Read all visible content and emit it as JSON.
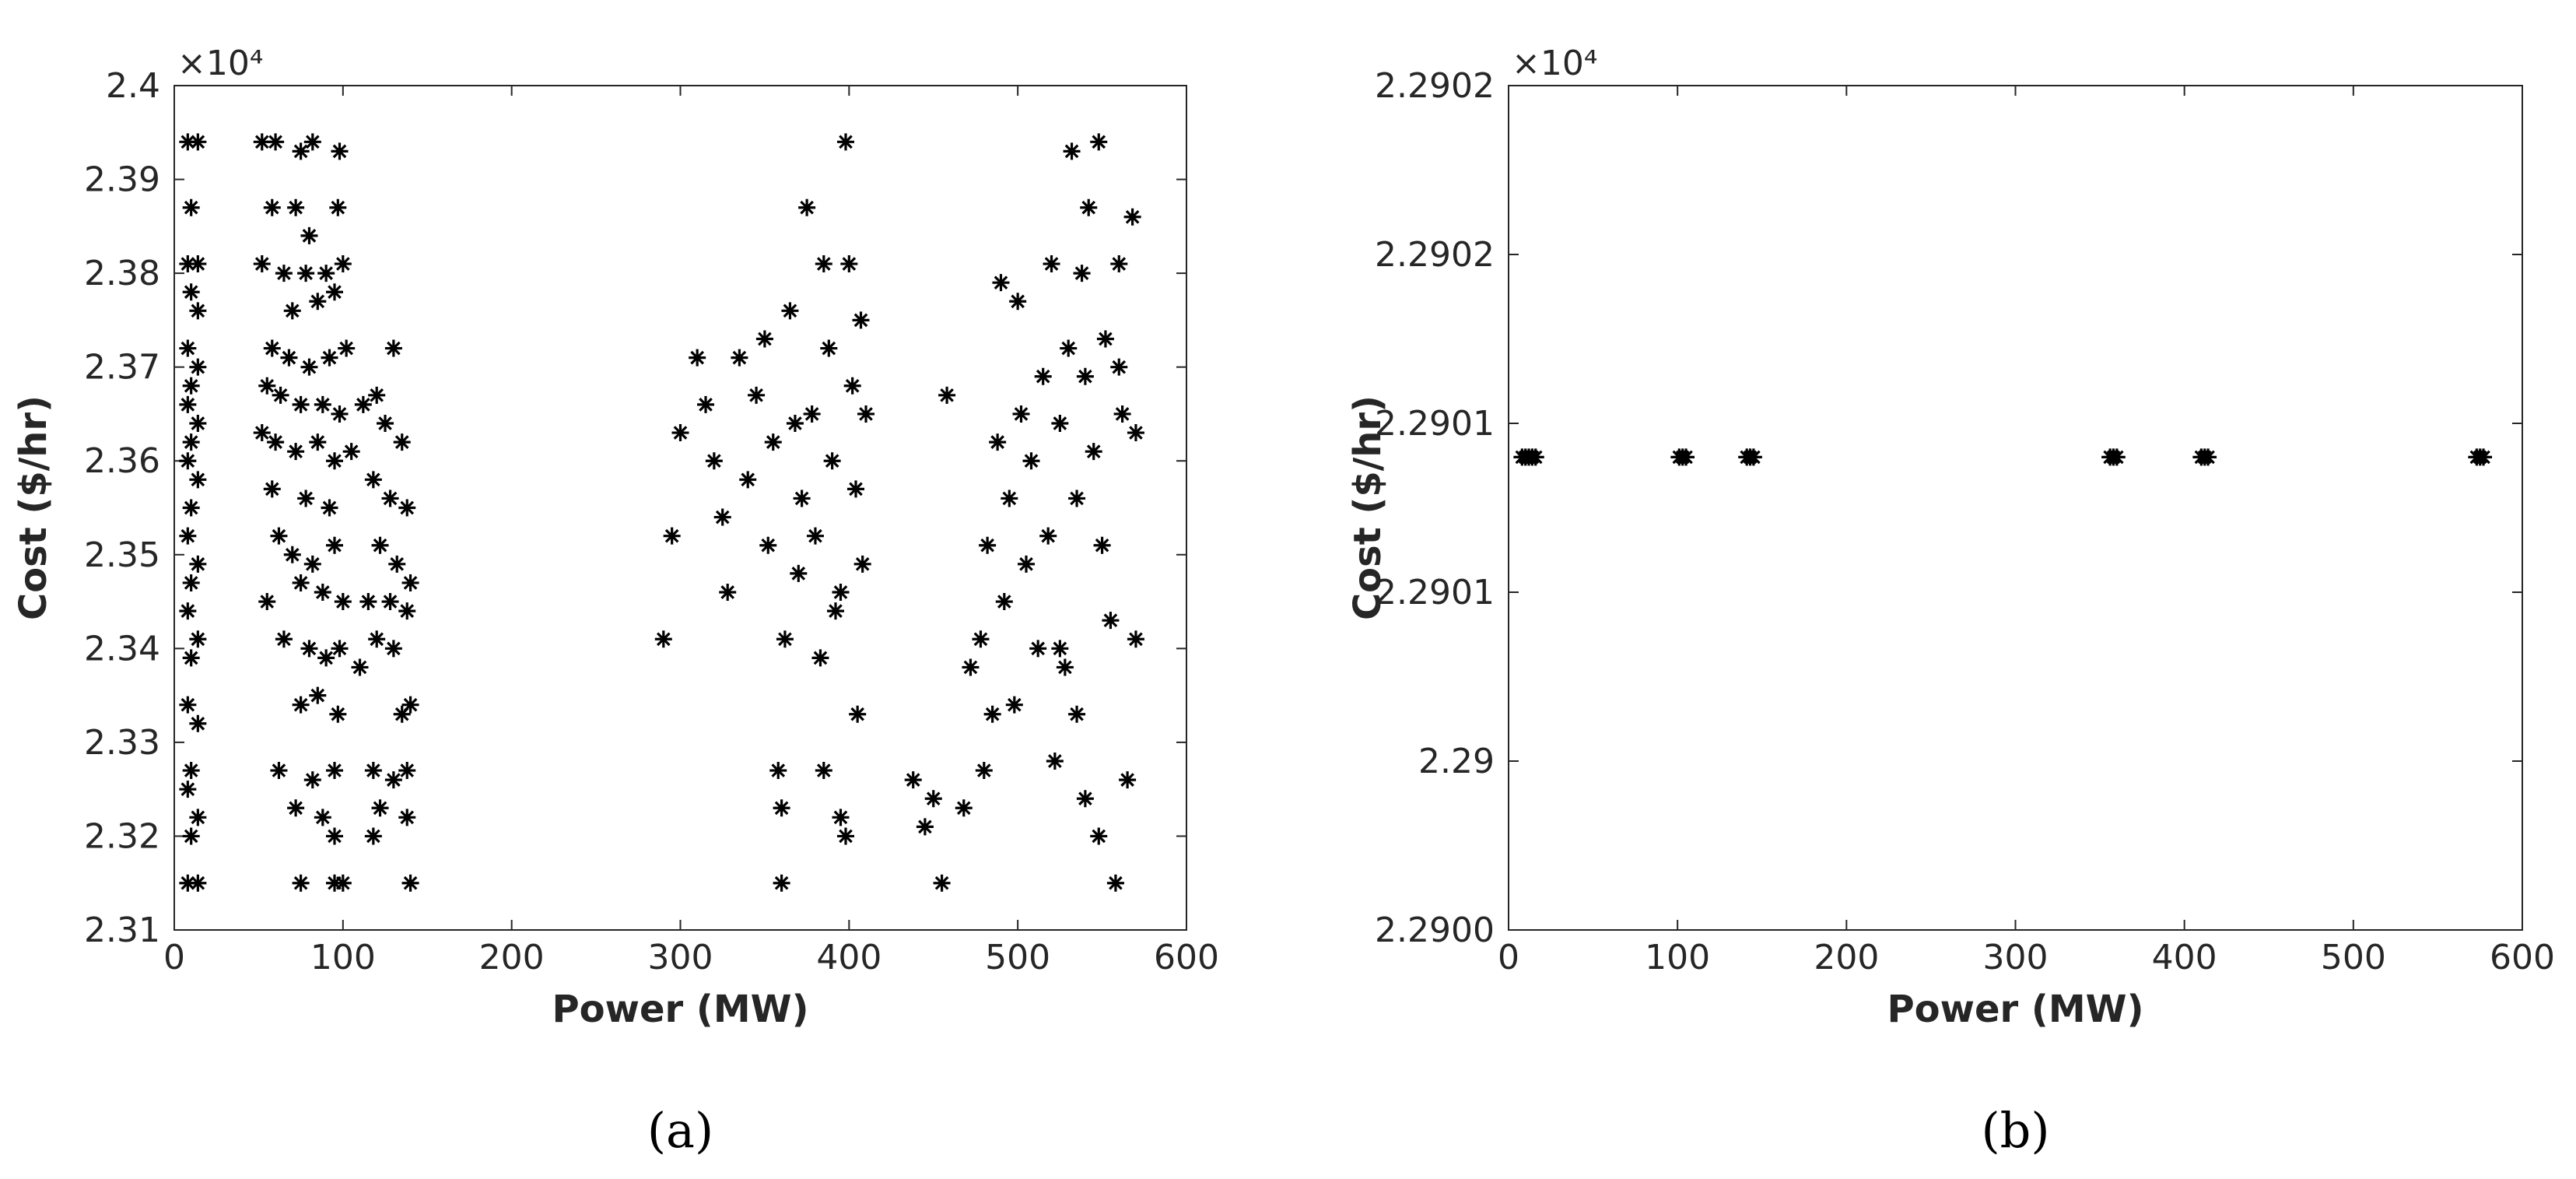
{
  "chart_data": [
    {
      "type": "scatter",
      "panel_label": "(a)",
      "xlabel": "Power (MW)",
      "ylabel": "Cost ($/hr)",
      "y_multiplier": "×10⁴",
      "marker": "asterisk",
      "color": "#000000",
      "xlim": [
        0,
        600
      ],
      "xticks": [
        0,
        100,
        200,
        300,
        400,
        500,
        600
      ],
      "ylim": [
        2.31,
        2.4
      ],
      "yticks": [
        2.31,
        2.32,
        2.33,
        2.34,
        2.35,
        2.36,
        2.37,
        2.38,
        2.39,
        2.4
      ],
      "series": [
        {
          "x": [
            8,
            14,
            10,
            8,
            14,
            10,
            14,
            8,
            14,
            10,
            8,
            14,
            10,
            8,
            14,
            10,
            8,
            14,
            10,
            8,
            14,
            10,
            8,
            14,
            10,
            8,
            14,
            10,
            8,
            14,
            52,
            60,
            75,
            82,
            98,
            58,
            72,
            97,
            80,
            52,
            65,
            78,
            90,
            100,
            70,
            85,
            95,
            58,
            68,
            80,
            92,
            102,
            55,
            63,
            75,
            88,
            98,
            52,
            60,
            72,
            85,
            95,
            105,
            58,
            78,
            92,
            62,
            70,
            82,
            95,
            55,
            75,
            88,
            100,
            65,
            80,
            90,
            98,
            75,
            85,
            97,
            62,
            82,
            95,
            72,
            88,
            95,
            75,
            95,
            100,
            112,
            120,
            130,
            125,
            135,
            118,
            128,
            138,
            122,
            132,
            140,
            115,
            128,
            138,
            120,
            130,
            110,
            135,
            140,
            118,
            130,
            138,
            122,
            138,
            118,
            140,
            290,
            295,
            300,
            310,
            315,
            320,
            325,
            328,
            335,
            340,
            345,
            350,
            352,
            355,
            358,
            360,
            362,
            365,
            368,
            370,
            372,
            375,
            378,
            380,
            383,
            385,
            388,
            390,
            392,
            395,
            398,
            400,
            402,
            404,
            405,
            407,
            408,
            410,
            360,
            398,
            385,
            395,
            438,
            445,
            450,
            455,
            458,
            468,
            472,
            478,
            480,
            482,
            485,
            488,
            490,
            492,
            495,
            498,
            500,
            502,
            505,
            508,
            512,
            515,
            518,
            520,
            522,
            525,
            528,
            530,
            532,
            535,
            538,
            540,
            542,
            545,
            548,
            550,
            552,
            555,
            558,
            560,
            562,
            565,
            568,
            570,
            570,
            548,
            540,
            525,
            560,
            535
          ],
          "y": [
            2.394,
            2.394,
            2.387,
            2.381,
            2.381,
            2.378,
            2.376,
            2.372,
            2.37,
            2.368,
            2.366,
            2.364,
            2.362,
            2.36,
            2.358,
            2.355,
            2.352,
            2.349,
            2.347,
            2.344,
            2.341,
            2.339,
            2.334,
            2.332,
            2.327,
            2.325,
            2.322,
            2.32,
            2.315,
            2.315,
            2.394,
            2.394,
            2.393,
            2.394,
            2.393,
            2.387,
            2.387,
            2.387,
            2.384,
            2.381,
            2.38,
            2.38,
            2.38,
            2.381,
            2.376,
            2.377,
            2.378,
            2.372,
            2.371,
            2.37,
            2.371,
            2.372,
            2.368,
            2.367,
            2.366,
            2.366,
            2.365,
            2.363,
            2.362,
            2.361,
            2.362,
            2.36,
            2.361,
            2.357,
            2.356,
            2.355,
            2.352,
            2.35,
            2.349,
            2.351,
            2.345,
            2.347,
            2.346,
            2.345,
            2.341,
            2.34,
            2.339,
            2.34,
            2.334,
            2.335,
            2.333,
            2.327,
            2.326,
            2.327,
            2.323,
            2.322,
            2.32,
            2.315,
            2.315,
            2.315,
            2.366,
            2.367,
            2.372,
            2.364,
            2.362,
            2.358,
            2.356,
            2.355,
            2.351,
            2.349,
            2.347,
            2.345,
            2.345,
            2.344,
            2.341,
            2.34,
            2.338,
            2.333,
            2.334,
            2.327,
            2.326,
            2.327,
            2.323,
            2.322,
            2.32,
            2.315,
            2.341,
            2.352,
            2.363,
            2.371,
            2.366,
            2.36,
            2.354,
            2.346,
            2.371,
            2.358,
            2.367,
            2.373,
            2.351,
            2.362,
            2.327,
            2.323,
            2.341,
            2.376,
            2.364,
            2.348,
            2.356,
            2.387,
            2.365,
            2.352,
            2.339,
            2.381,
            2.372,
            2.36,
            2.344,
            2.322,
            2.394,
            2.381,
            2.368,
            2.357,
            2.333,
            2.375,
            2.349,
            2.365,
            2.315,
            2.32,
            2.327,
            2.346,
            2.326,
            2.321,
            2.324,
            2.315,
            2.367,
            2.323,
            2.338,
            2.341,
            2.327,
            2.351,
            2.333,
            2.362,
            2.379,
            2.345,
            2.356,
            2.334,
            2.377,
            2.365,
            2.349,
            2.36,
            2.34,
            2.369,
            2.352,
            2.381,
            2.328,
            2.364,
            2.338,
            2.372,
            2.393,
            2.356,
            2.38,
            2.369,
            2.387,
            2.361,
            2.394,
            2.351,
            2.373,
            2.343,
            2.315,
            2.381,
            2.365,
            2.326,
            2.386,
            2.363,
            2.341,
            2.32,
            2.324,
            2.34,
            2.37,
            2.333
          ]
        }
      ]
    },
    {
      "type": "scatter",
      "panel_label": "(b)",
      "xlabel": "Power (MW)",
      "ylabel": "Cost ($/hr)",
      "y_multiplier": "×10⁴",
      "marker": "asterisk",
      "color": "#000000",
      "xlim": [
        0,
        600
      ],
      "xticks": [
        0,
        100,
        200,
        300,
        400,
        500,
        600
      ],
      "ylim": [
        2.29,
        2.2902
      ],
      "yticks": [
        {
          "value": 2.29,
          "label": "2.2900"
        },
        {
          "value": 2.29004,
          "label": "2.29"
        },
        {
          "value": 2.29008,
          "label": "2.2901"
        },
        {
          "value": 2.29012,
          "label": "2.2901"
        },
        {
          "value": 2.29016,
          "label": "2.2902"
        },
        {
          "value": 2.2902,
          "label": "2.2902"
        }
      ],
      "series": [
        {
          "x": [
            8,
            10,
            12,
            14,
            16,
            101,
            103,
            105,
            141,
            143,
            145,
            356,
            358,
            360,
            410,
            412,
            414,
            573,
            575,
            577
          ],
          "y": [
            2.290112,
            2.290112,
            2.290112,
            2.290112,
            2.290112,
            2.290112,
            2.290112,
            2.290112,
            2.290112,
            2.290112,
            2.290112,
            2.290112,
            2.290112,
            2.290112,
            2.290112,
            2.290112,
            2.290112,
            2.290112,
            2.290112,
            2.290112
          ]
        }
      ]
    }
  ]
}
